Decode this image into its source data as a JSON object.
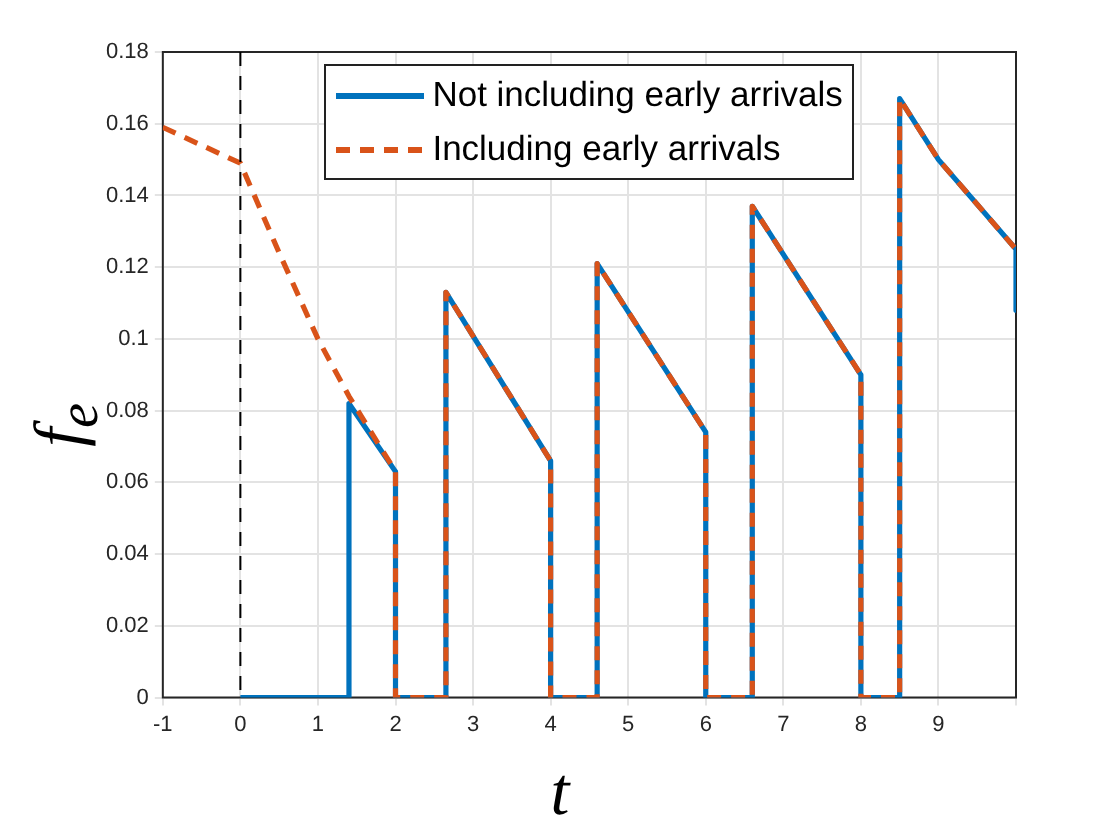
{
  "chart_data": {
    "type": "line",
    "xlabel": "t",
    "ylabel": "f$_{e}$",
    "xlim": [
      -1,
      10
    ],
    "xticks": [
      -1,
      0,
      1,
      2,
      3,
      4,
      5,
      6,
      7,
      8,
      9,
      {
        "value": 10,
        "label": null
      }
    ],
    "ylim": [
      0,
      0.18
    ],
    "yticks": [
      0,
      0.02,
      0.04,
      0.06,
      0.08,
      0.1,
      0.12,
      0.14,
      0.16,
      0.18
    ],
    "grid": true,
    "legend": "top",
    "marker": "none",
    "ref_lines": [
      {
        "axis": "x",
        "value": 0,
        "color": "#000000",
        "line_style": "dashed"
      }
    ],
    "series": [
      {
        "name": "Not including early arrivals",
        "color": "#0072bd",
        "line_style": "solid",
        "x": [
          0,
          1.4,
          1.4,
          2,
          2,
          2.65,
          2.65,
          4,
          4,
          4.6,
          4.6,
          6,
          6,
          6.6,
          6.6,
          8,
          8,
          8.5,
          8.5,
          9,
          10,
          10
        ],
        "values": [
          0,
          0,
          0.082,
          0.063,
          0,
          0,
          0.113,
          0.066,
          0,
          0,
          0.121,
          0.074,
          0,
          0,
          0.137,
          0.09,
          0,
          0,
          0.167,
          0.15,
          0.125,
          0.108
        ]
      },
      {
        "name": "Including early arrivals",
        "color": "#d95319",
        "line_style": "dashed",
        "x": [
          -1,
          0,
          0.5,
          1,
          1.4,
          2,
          2,
          2.65,
          2.65,
          4,
          4,
          4.6,
          4.6,
          6,
          6,
          6.6,
          6.6,
          8,
          8,
          8.5,
          8.5,
          9,
          10
        ],
        "values": [
          0.159,
          0.149,
          0.124,
          0.1,
          0.084,
          0.063,
          0,
          0,
          0.113,
          0.066,
          0,
          0,
          0.121,
          0.074,
          0,
          0,
          0.137,
          0.09,
          0,
          0,
          0.167,
          0.15,
          0.125
        ]
      }
    ]
  }
}
